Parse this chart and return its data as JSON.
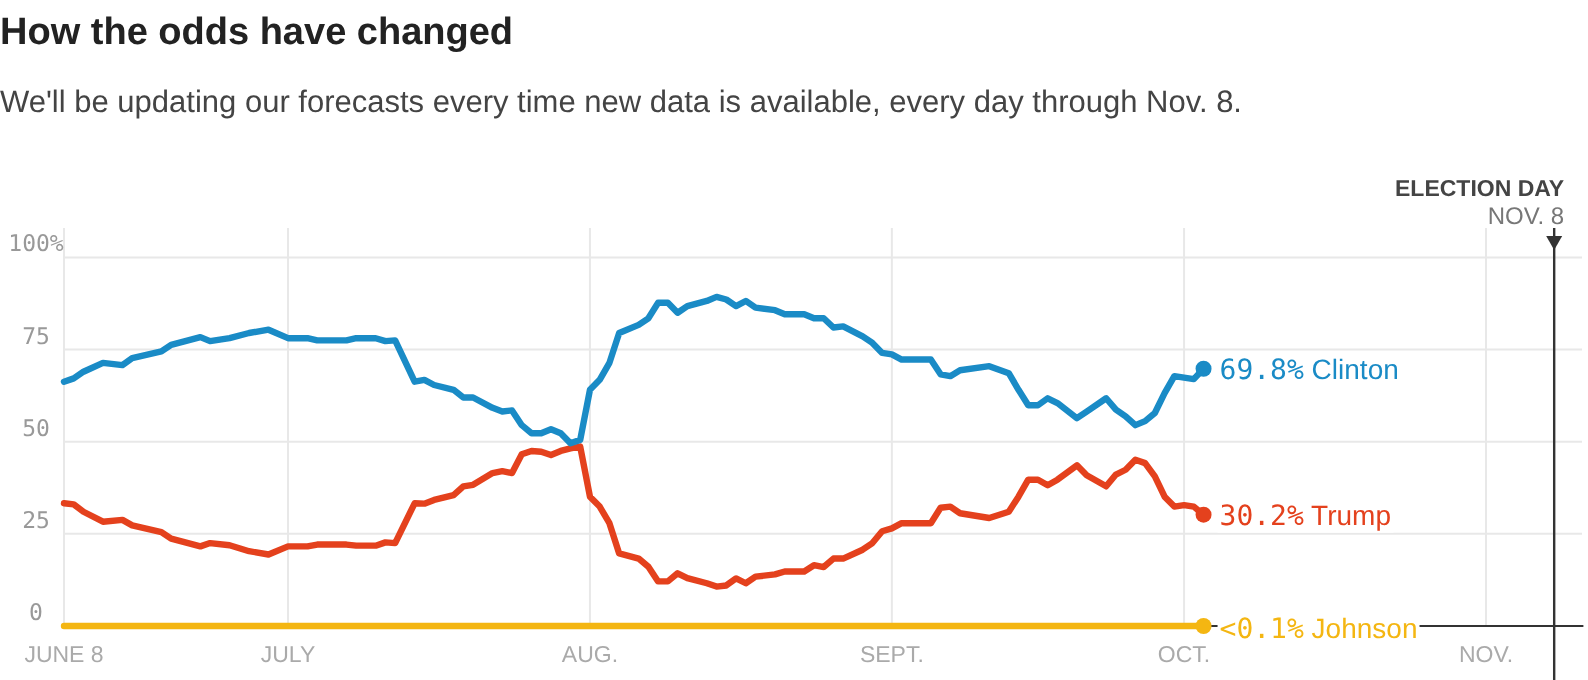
{
  "chart_data": {
    "type": "line",
    "title": "How the odds have changed",
    "subtitle": "We'll be updating our forecasts every time new data is available, every day through Nov. 8.",
    "x": [
      "--06-08",
      "--06-09",
      "--06-10",
      "--06-12",
      "--06-14",
      "--06-15",
      "--06-18",
      "--06-19",
      "--06-22",
      "--06-23",
      "--06-25",
      "--06-27",
      "--06-29",
      "--07-01",
      "--07-03",
      "--07-04",
      "--07-07",
      "--07-08",
      "--07-10",
      "--07-11",
      "--07-12",
      "--07-14",
      "--07-15",
      "--07-16",
      "--07-18",
      "--07-19",
      "--07-20",
      "--07-22",
      "--07-23",
      "--07-24",
      "--07-25",
      "--07-26",
      "--07-27",
      "--07-28",
      "--07-29",
      "--07-30",
      "--07-31",
      "--08-01",
      "--08-02",
      "--08-03",
      "--08-04",
      "--08-06",
      "--08-07",
      "--08-08",
      "--08-09",
      "--08-10",
      "--08-11",
      "--08-13",
      "--08-14",
      "--08-15",
      "--08-16",
      "--08-17",
      "--08-18",
      "--08-20",
      "--08-21",
      "--08-23",
      "--08-24",
      "--08-25",
      "--08-26",
      "--08-27",
      "--08-29",
      "--08-30",
      "--08-31",
      "--09-01",
      "--09-02",
      "--09-05",
      "--09-06",
      "--09-07",
      "--09-08",
      "--09-11",
      "--09-13",
      "--09-14",
      "--09-15",
      "--09-16",
      "--09-17",
      "--09-18",
      "--09-20",
      "--09-21",
      "--09-23",
      "--09-24",
      "--09-25",
      "--09-26",
      "--09-27",
      "--09-28",
      "--09-29",
      "--09-30",
      "--10-01",
      "--10-02",
      "--10-03"
    ],
    "series": [
      {
        "name": "Clinton",
        "color": "#1a8bc6",
        "values": [
          66.3,
          67.2,
          69,
          71.4,
          70.8,
          72.7,
          74.5,
          76.3,
          78.4,
          77.3,
          78.1,
          79.5,
          80.4,
          78.1,
          78.1,
          77.5,
          77.5,
          78.1,
          78.1,
          77.3,
          77.5,
          66.3,
          66.8,
          65.4,
          64.1,
          62,
          62,
          59.2,
          58.2,
          58.5,
          54.5,
          52.3,
          52.3,
          53.4,
          52.3,
          49.6,
          50.5,
          64.1,
          66.8,
          71.4,
          79.5,
          81.7,
          83.5,
          87.7,
          87.7,
          85,
          86.8,
          88.2,
          89.3,
          88.6,
          86.8,
          88.2,
          86.4,
          85.7,
          84.6,
          84.6,
          83.5,
          83.5,
          81,
          81.3,
          78.6,
          76.8,
          74.1,
          73.7,
          72.3,
          72.3,
          68.3,
          67.8,
          69.4,
          70.5,
          68.6,
          64.1,
          59.9,
          59.9,
          61.8,
          60.5,
          56.4,
          58.2,
          61.8,
          58.7,
          56.9,
          54.5,
          55.6,
          57.8,
          63.2,
          67.8,
          67.4,
          67,
          69.8
        ],
        "value_labels": [
          null,
          null,
          null,
          null,
          null,
          null,
          null,
          null,
          null,
          null,
          null,
          null,
          null,
          null,
          null,
          null,
          null,
          null,
          null,
          null,
          null,
          null,
          null,
          null,
          null,
          null,
          null,
          null,
          null,
          null,
          null,
          null,
          null,
          null,
          null,
          null,
          null,
          null,
          null,
          null,
          null,
          null,
          null,
          null,
          null,
          null,
          null,
          null,
          null,
          null,
          null,
          null,
          null,
          null,
          null,
          null,
          null,
          null,
          null,
          null,
          null,
          null,
          null,
          null,
          null,
          null,
          null,
          null,
          null,
          null,
          null,
          null,
          null,
          null,
          null,
          null,
          null,
          null,
          null,
          null,
          null,
          null,
          null,
          null,
          null,
          null,
          null,
          null,
          "69.8%"
        ]
      },
      {
        "name": "Trump",
        "color": "#e4411d",
        "values": [
          33.3,
          33,
          31,
          28.3,
          28.8,
          27.3,
          25.5,
          23.7,
          21.6,
          22.5,
          21.9,
          20.3,
          19.4,
          21.6,
          21.6,
          22.1,
          22.1,
          21.8,
          21.8,
          22.7,
          22.5,
          33.3,
          33.2,
          34.2,
          35.5,
          37.9,
          38.3,
          41.5,
          42,
          41.5,
          46.6,
          47.5,
          47.3,
          46.4,
          47.5,
          48.2,
          48.7,
          35.1,
          32.4,
          27.9,
          19.7,
          18.3,
          16.1,
          12.1,
          12.1,
          14.3,
          13,
          11.6,
          10.7,
          11,
          12.9,
          11.6,
          13.4,
          14,
          14.8,
          14.8,
          16.5,
          16,
          18.3,
          18.3,
          20.7,
          22.5,
          25.7,
          26.5,
          27.9,
          27.9,
          32.1,
          32.4,
          30.6,
          29.3,
          31,
          35.1,
          39.7,
          39.7,
          38.2,
          39.7,
          43.6,
          40.9,
          37.9,
          41.1,
          42.4,
          45.1,
          44.2,
          40.6,
          35.1,
          32.4,
          32.8,
          32.4,
          30.2
        ],
        "value_labels": [
          null,
          null,
          null,
          null,
          null,
          null,
          null,
          null,
          null,
          null,
          null,
          null,
          null,
          null,
          null,
          null,
          null,
          null,
          null,
          null,
          null,
          null,
          null,
          null,
          null,
          null,
          null,
          null,
          null,
          null,
          null,
          null,
          null,
          null,
          null,
          null,
          null,
          null,
          null,
          null,
          null,
          null,
          null,
          null,
          null,
          null,
          null,
          null,
          null,
          null,
          null,
          null,
          null,
          null,
          null,
          null,
          null,
          null,
          null,
          null,
          null,
          null,
          null,
          null,
          null,
          null,
          null,
          null,
          null,
          null,
          null,
          null,
          null,
          null,
          null,
          null,
          null,
          null,
          null,
          null,
          null,
          null,
          null,
          null,
          null,
          null,
          null,
          null,
          "30.2%"
        ]
      },
      {
        "name": "Johnson",
        "color": "#f4b612",
        "values": [
          0,
          0,
          0,
          0,
          0,
          0,
          0,
          0,
          0,
          0,
          0,
          0,
          0,
          0,
          0,
          0,
          0,
          0,
          0,
          0,
          0,
          0,
          0,
          0,
          0,
          0,
          0,
          0,
          0,
          0,
          0,
          0,
          0,
          0,
          0,
          0,
          0,
          0,
          0,
          0,
          0,
          0,
          0,
          0,
          0,
          0,
          0,
          0,
          0,
          0,
          0,
          0,
          0,
          0,
          0,
          0,
          0,
          0,
          0,
          0,
          0,
          0,
          0,
          0,
          0,
          0,
          0,
          0,
          0,
          0,
          0,
          0,
          0,
          0,
          0,
          0,
          0,
          0,
          0,
          0,
          0,
          0,
          0,
          0,
          0,
          0,
          0,
          0,
          0
        ],
        "value_labels": [
          null,
          null,
          null,
          null,
          null,
          null,
          null,
          null,
          null,
          null,
          null,
          null,
          null,
          null,
          null,
          null,
          null,
          null,
          null,
          null,
          null,
          null,
          null,
          null,
          null,
          null,
          null,
          null,
          null,
          null,
          null,
          null,
          null,
          null,
          null,
          null,
          null,
          null,
          null,
          null,
          null,
          null,
          null,
          null,
          null,
          null,
          null,
          null,
          null,
          null,
          null,
          null,
          null,
          null,
          null,
          null,
          null,
          null,
          null,
          null,
          null,
          null,
          null,
          null,
          null,
          null,
          null,
          null,
          null,
          null,
          null,
          null,
          null,
          null,
          null,
          null,
          null,
          null,
          null,
          null,
          null,
          null,
          null,
          null,
          null,
          null,
          null,
          null,
          "<0.1%"
        ]
      }
    ],
    "xlim": [
      "--06-08",
      "--11-11"
    ],
    "xticks": [
      {
        "value": "--06-08",
        "label": "JUNE 8"
      },
      {
        "value": "--07-01",
        "label": "JULY"
      },
      {
        "value": "--08-01",
        "label": "AUG."
      },
      {
        "value": "--09-01",
        "label": "SEPT."
      },
      {
        "value": "--10-01",
        "label": "OCT."
      },
      {
        "value": "--11-01",
        "label": "NOV."
      }
    ],
    "ylim": [
      0,
      108
    ],
    "yticks": [
      0,
      25,
      50,
      75,
      {
        "value": 100,
        "label": "100%"
      }
    ],
    "ref_lines": [
      {
        "axis": "x",
        "value": "--11-08",
        "label": "ELECTION DAY\nNOV. 8",
        "color": "#333333"
      }
    ],
    "grid": true,
    "legend": false,
    "marker": "none",
    "line_style": "solid"
  }
}
